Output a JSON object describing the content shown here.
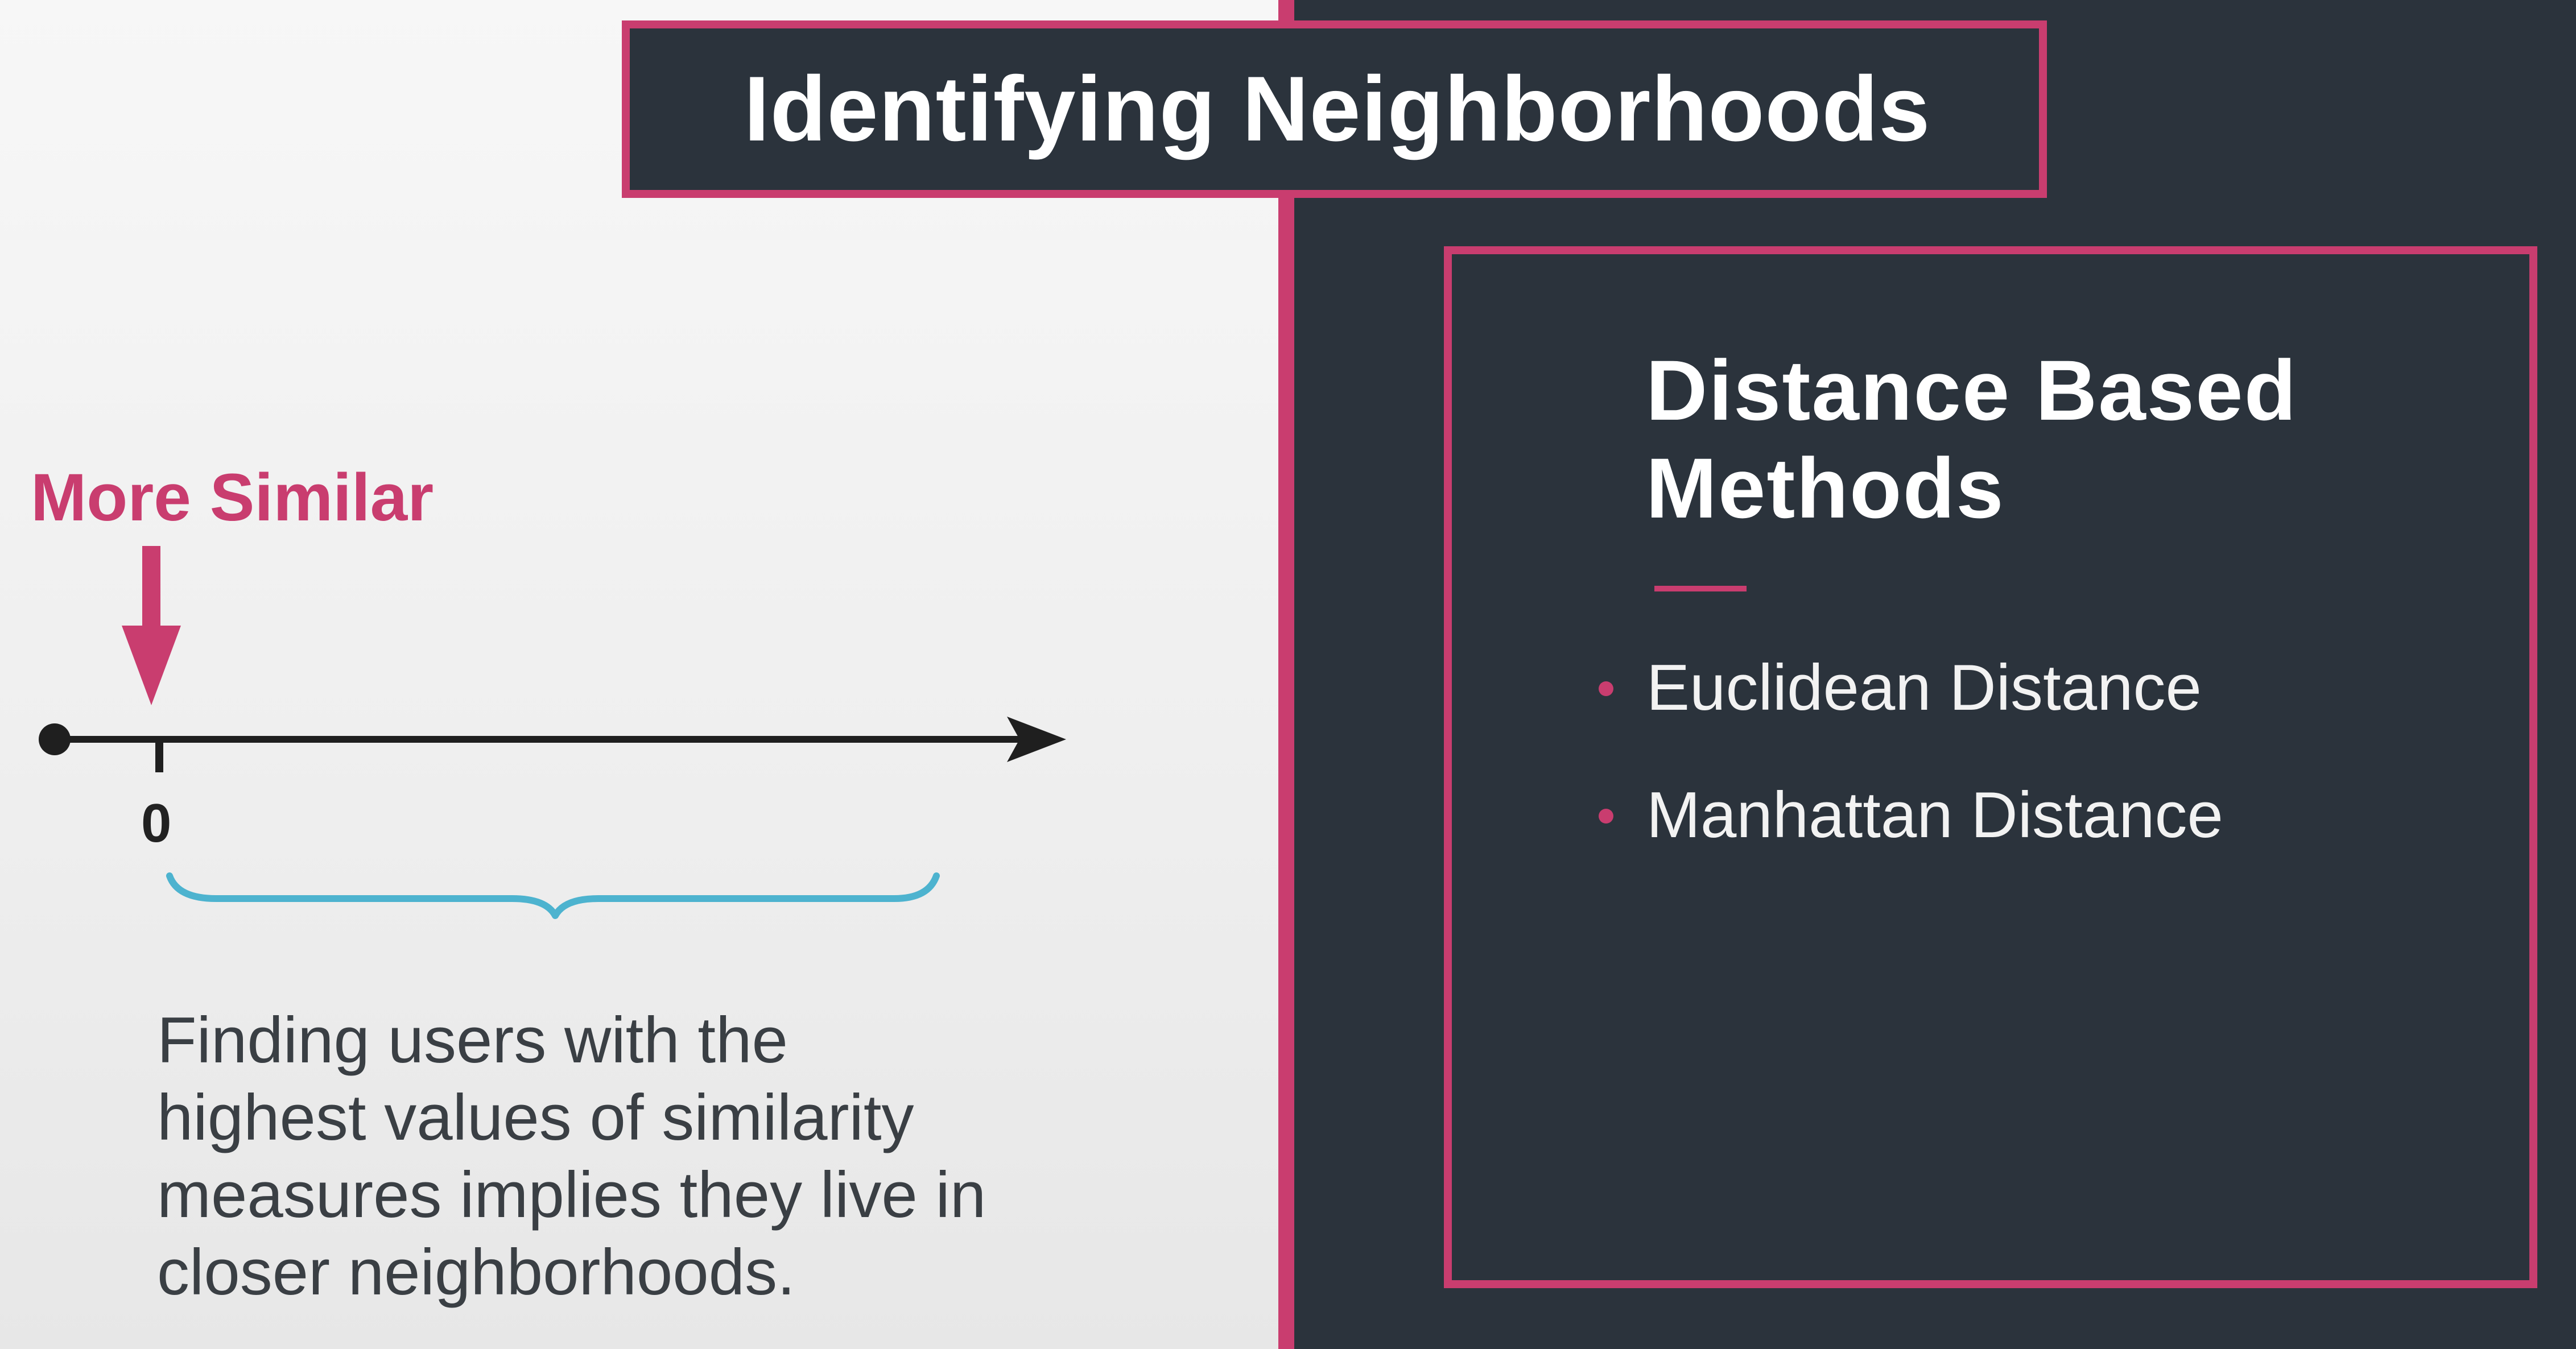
{
  "slide": {
    "title": "Identifying Neighborhoods"
  },
  "left": {
    "marker_label": "More Similar",
    "axis_origin_label": "0",
    "caption_lines": [
      "Finding users with the",
      "highest values of similarity",
      "measures implies they live in",
      "closer neighborhoods."
    ]
  },
  "right": {
    "heading_lines": [
      "Distance Based",
      "Methods"
    ],
    "bullets": [
      "Euclidean Distance",
      "Manhattan Distance"
    ]
  },
  "colors": {
    "accent": "#c93d6f",
    "panel_dark": "#2b333c",
    "brace": "#4db3cf",
    "axis": "#1f1f1f"
  },
  "icons": {
    "marker": "down-arrow-icon",
    "axis_end": "right-arrow-icon",
    "axis_start": "dot-icon",
    "brace": "curly-brace-icon",
    "bullet": "bullet-dot-icon"
  }
}
